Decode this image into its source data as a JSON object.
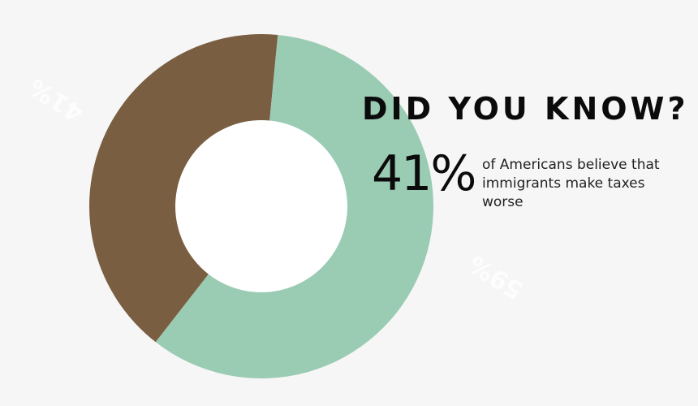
{
  "chart_data": {
    "type": "pie",
    "variant": "donut",
    "slices": [
      {
        "label": "41%",
        "value": 41,
        "color": "#7a5e42"
      },
      {
        "label": "59%",
        "value": 59,
        "color": "#9acbb3"
      }
    ]
  },
  "callout": {
    "headline": "DID YOU KNOW?",
    "stat": "41%",
    "description": "of Americans believe that immigrants make taxes worse"
  },
  "colors": {
    "background": "#f6f6f6",
    "text": "#0b0b0b",
    "hole": "#ffffff"
  }
}
